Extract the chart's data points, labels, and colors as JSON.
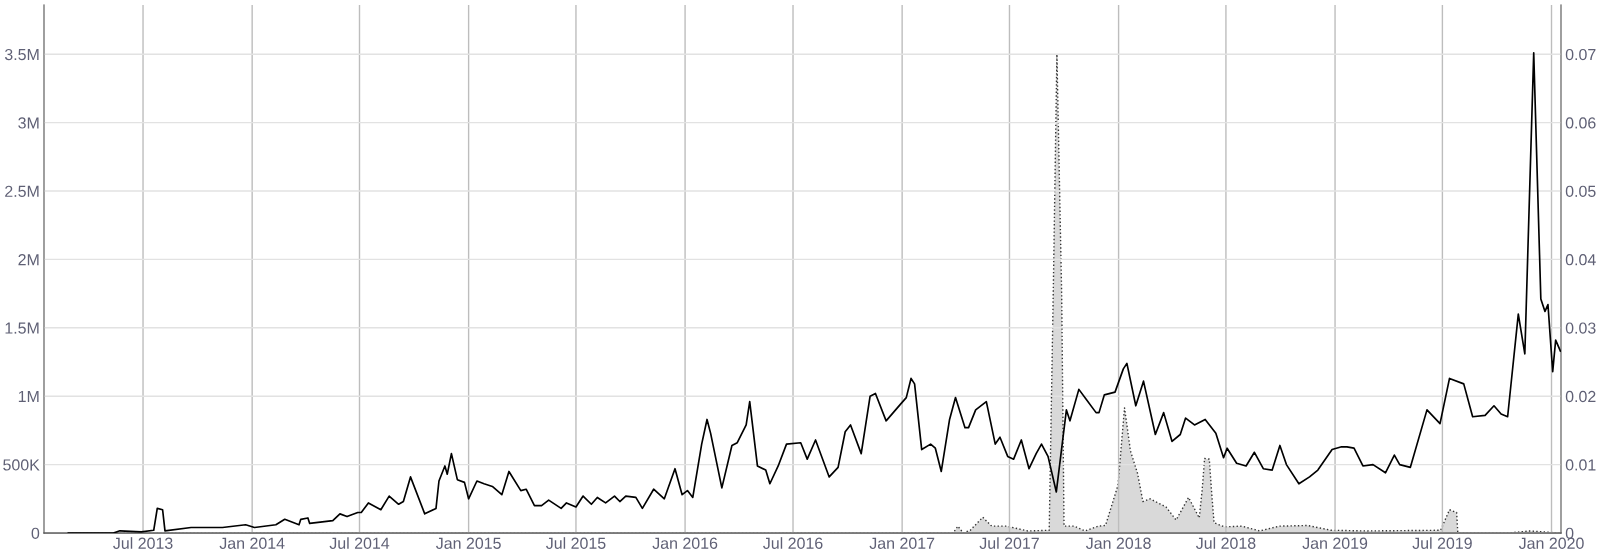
{
  "chart_data": {
    "type": "line",
    "xlim": [
      "2013-01-15",
      "2020-01-17"
    ],
    "xticks": [
      {
        "value": "2013-07-01",
        "label": "Jul 2013"
      },
      {
        "value": "2014-01-01",
        "label": "Jan 2014"
      },
      {
        "value": "2014-07-01",
        "label": "Jul 2014"
      },
      {
        "value": "2015-01-01",
        "label": "Jan 2015"
      },
      {
        "value": "2015-07-01",
        "label": "Jul 2015"
      },
      {
        "value": "2016-01-01",
        "label": "Jan 2016"
      },
      {
        "value": "2016-07-01",
        "label": "Jul 2016"
      },
      {
        "value": "2017-01-01",
        "label": "Jan 2017"
      },
      {
        "value": "2017-07-01",
        "label": "Jul 2017"
      },
      {
        "value": "2018-01-01",
        "label": "Jan 2018"
      },
      {
        "value": "2018-07-01",
        "label": "Jul 2018"
      },
      {
        "value": "2019-01-01",
        "label": "Jan 2019"
      },
      {
        "value": "2019-07-01",
        "label": "Jul 2019"
      },
      {
        "value": "2020-01-01",
        "label": "Jan 2020"
      }
    ],
    "ylim": [
      0,
      3860000
    ],
    "yticks": [
      0,
      {
        "value": 500000,
        "label": "500K"
      },
      {
        "value": 1000000,
        "label": "1M"
      },
      {
        "value": 1500000,
        "label": "1.5M"
      },
      {
        "value": 2000000,
        "label": "2M"
      },
      {
        "value": 2500000,
        "label": "2.5M"
      },
      {
        "value": 3000000,
        "label": "3M"
      },
      {
        "value": 3500000,
        "label": "3.5M"
      }
    ],
    "y2lim": [
      0,
      0.0772
    ],
    "y2ticks": [
      0,
      0.01,
      0.02,
      0.03,
      0.04,
      0.05,
      0.06,
      0.07
    ],
    "grid": true,
    "series": [
      {
        "type": "area",
        "axis": "y2",
        "color": "#d9d9d9",
        "line_style": "dotted",
        "x": [
          "2013-02-25",
          "2017-03-28",
          "2017-04-05",
          "2017-04-14",
          "2017-04-26",
          "2017-05-17",
          "2017-06-01",
          "2017-06-26",
          "2017-08-01",
          "2017-09-06",
          "2017-09-13",
          "2017-09-19",
          "2017-09-27",
          "2017-10-01",
          "2017-10-18",
          "2017-11-05",
          "2017-11-28",
          "2017-12-10",
          "2017-12-31",
          "2018-01-11",
          "2018-01-21",
          "2018-02-02",
          "2018-02-11",
          "2018-02-23",
          "2018-03-22",
          "2018-04-08",
          "2018-04-29",
          "2018-05-17",
          "2018-05-22",
          "2018-05-26",
          "2018-06-03",
          "2018-06-07",
          "2018-06-11",
          "2018-06-28",
          "2018-07-28",
          "2018-08-27",
          "2018-09-29",
          "2018-11-16",
          "2018-12-25",
          "2019-02-23",
          "2019-06-28",
          "2019-07-13",
          "2019-07-25",
          "2019-07-27",
          "2019-10-20",
          "2019-11-25",
          "2020-01-16"
        ],
        "values": [
          0,
          0,
          0.001,
          0,
          0.0004,
          0.0023,
          0.001,
          0.001,
          0.0003,
          0.0004,
          0.036,
          0.07,
          0.035,
          0.001,
          0.001,
          0.0003,
          0.001,
          0.0011,
          0.007,
          0.0183,
          0.012,
          0.0087,
          0.0046,
          0.005,
          0.0038,
          0.0019,
          0.0052,
          0.0022,
          0.0064,
          0.0109,
          0.0108,
          0.0058,
          0.0015,
          0.0009,
          0.001,
          0.0003,
          0.001,
          0.0011,
          0.0004,
          0.0003,
          0.0004,
          0.0034,
          0.003,
          0,
          0,
          0.0003,
          0
        ]
      },
      {
        "color": "#000000",
        "line_style": "solid",
        "x": [
          "2013-02-25",
          "2013-05-12",
          "2013-05-23",
          "2013-06-28",
          "2013-07-19",
          "2013-07-25",
          "2013-08-03",
          "2013-08-07",
          "2013-09-20",
          "2013-11-12",
          "2013-12-21",
          "2014-01-05",
          "2014-02-10",
          "2014-02-25",
          "2014-03-21",
          "2014-03-24",
          "2014-04-05",
          "2014-04-08",
          "2014-05-17",
          "2014-05-29",
          "2014-06-10",
          "2014-06-28",
          "2014-07-04",
          "2014-07-16",
          "2014-08-06",
          "2014-08-20",
          "2014-09-05",
          "2014-09-13",
          "2014-09-25",
          "2014-10-19",
          "2014-11-07",
          "2014-11-12",
          "2014-11-22",
          "2014-11-26",
          "2014-12-03",
          "2014-12-13",
          "2014-12-25",
          "2015-01-01",
          "2015-01-15",
          "2015-01-27",
          "2015-02-10",
          "2015-02-26",
          "2015-03-10",
          "2015-03-30",
          "2015-04-08",
          "2015-04-22",
          "2015-05-04",
          "2015-05-16",
          "2015-06-06",
          "2015-06-15",
          "2015-07-01",
          "2015-07-13",
          "2015-07-27",
          "2015-08-06",
          "2015-08-20",
          "2015-09-04",
          "2015-09-13",
          "2015-09-23",
          "2015-10-10",
          "2015-10-21",
          "2015-11-09",
          "2015-11-27",
          "2015-12-15",
          "2015-12-27",
          "2016-01-05",
          "2016-01-14",
          "2016-01-29",
          "2016-02-07",
          "2016-02-13",
          "2016-03-03",
          "2016-03-20",
          "2016-03-29",
          "2016-04-13",
          "2016-04-19",
          "2016-05-02",
          "2016-05-16",
          "2016-05-23",
          "2016-06-06",
          "2016-06-20",
          "2016-07-14",
          "2016-07-25",
          "2016-08-08",
          "2016-08-31",
          "2016-09-15",
          "2016-09-27",
          "2016-10-06",
          "2016-10-24",
          "2016-11-08",
          "2016-11-17",
          "2016-12-05",
          "2016-12-17",
          "2016-12-29",
          "2017-01-08",
          "2017-01-16",
          "2017-01-22",
          "2017-02-03",
          "2017-02-18",
          "2017-02-26",
          "2017-03-08",
          "2017-03-22",
          "2017-04-01",
          "2017-04-17",
          "2017-04-23",
          "2017-05-05",
          "2017-05-23",
          "2017-06-07",
          "2017-06-15",
          "2017-06-28",
          "2017-07-08",
          "2017-07-21",
          "2017-08-03",
          "2017-08-15",
          "2017-08-24",
          "2017-09-04",
          "2017-09-18",
          "2017-10-05",
          "2017-10-11",
          "2017-10-26",
          "2017-11-07",
          "2017-11-24",
          "2017-11-29",
          "2017-12-08",
          "2017-12-26",
          "2018-01-09",
          "2018-01-15",
          "2018-01-30",
          "2018-02-12",
          "2018-03-04",
          "2018-03-18",
          "2018-04-01",
          "2018-04-15",
          "2018-04-24",
          "2018-05-09",
          "2018-05-27",
          "2018-06-14",
          "2018-06-27",
          "2018-07-03",
          "2018-07-19",
          "2018-08-04",
          "2018-08-18",
          "2018-09-02",
          "2018-09-17",
          "2018-09-30",
          "2018-10-11",
          "2018-11-01",
          "2018-11-19",
          "2018-12-03",
          "2018-12-27",
          "2019-01-12",
          "2019-01-21",
          "2019-02-02",
          "2019-02-17",
          "2019-03-06",
          "2019-03-27",
          "2019-04-11",
          "2019-04-20",
          "2019-05-08",
          "2019-06-05",
          "2019-06-27",
          "2019-07-13",
          "2019-08-06",
          "2019-08-21",
          "2019-09-11",
          "2019-09-26",
          "2019-10-08",
          "2019-10-19",
          "2019-11-06",
          "2019-11-17",
          "2019-12-02",
          "2019-12-14",
          "2019-12-21",
          "2019-12-26",
          "2020-01-03",
          "2020-01-08",
          "2020-01-16"
        ],
        "values": [
          0,
          0,
          16000,
          8000,
          20000,
          180000,
          170000,
          15000,
          40000,
          40000,
          60000,
          40000,
          60000,
          100000,
          60000,
          100000,
          110000,
          70000,
          90000,
          140000,
          120000,
          150000,
          150000,
          220000,
          170000,
          270000,
          210000,
          230000,
          410000,
          140000,
          180000,
          380000,
          490000,
          430000,
          580000,
          390000,
          370000,
          250000,
          380000,
          360000,
          340000,
          280000,
          450000,
          310000,
          320000,
          200000,
          200000,
          240000,
          180000,
          220000,
          190000,
          270000,
          210000,
          260000,
          220000,
          270000,
          230000,
          270000,
          260000,
          180000,
          320000,
          250000,
          470000,
          280000,
          310000,
          260000,
          650000,
          830000,
          730000,
          330000,
          640000,
          660000,
          790000,
          960000,
          490000,
          460000,
          360000,
          490000,
          650000,
          660000,
          540000,
          680000,
          410000,
          480000,
          740000,
          790000,
          580000,
          1000000,
          1020000,
          820000,
          880000,
          940000,
          990000,
          1130000,
          1090000,
          610000,
          650000,
          620000,
          450000,
          830000,
          990000,
          770000,
          770000,
          900000,
          960000,
          650000,
          700000,
          560000,
          540000,
          680000,
          470000,
          580000,
          650000,
          560000,
          300000,
          900000,
          820000,
          1050000,
          980000,
          880000,
          880000,
          1010000,
          1030000,
          1200000,
          1240000,
          930000,
          1110000,
          720000,
          880000,
          670000,
          720000,
          840000,
          790000,
          830000,
          730000,
          550000,
          620000,
          510000,
          490000,
          590000,
          470000,
          460000,
          640000,
          500000,
          360000,
          410000,
          460000,
          610000,
          630000,
          630000,
          620000,
          490000,
          500000,
          440000,
          570000,
          500000,
          480000,
          900000,
          800000,
          1130000,
          1090000,
          850000,
          860000,
          930000,
          870000,
          850000,
          1600000,
          1310000,
          3510000,
          1710000,
          1620000,
          1670000,
          1180000,
          1410000,
          1330000
        ]
      }
    ]
  }
}
